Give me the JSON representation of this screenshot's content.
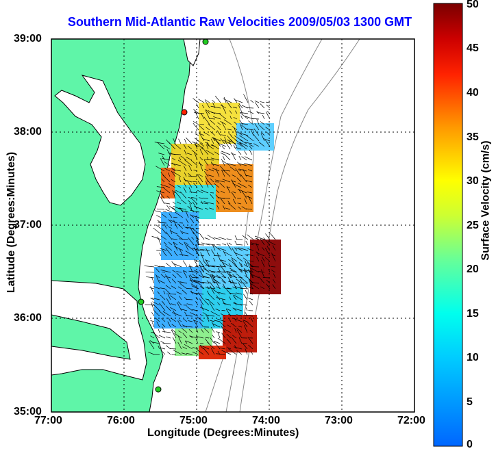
{
  "title": "Southern Mid-Atlantic Raw Velocities 2009/05/03 1300 GMT",
  "x_axis": {
    "label": "Longitude (Degrees:Minutes)",
    "ticks": [
      "77:00",
      "76:00",
      "75:00",
      "74:00",
      "73:00",
      "72:00"
    ]
  },
  "y_axis": {
    "label": "Latitude (Degrees:Minutes)",
    "ticks": [
      "39:00",
      "38:00",
      "37:00",
      "36:00",
      "35:00"
    ]
  },
  "colorbar": {
    "label": "Surface Velocity (cm/s)",
    "ticks": [
      "50",
      "45",
      "40",
      "35",
      "30",
      "25",
      "20",
      "15",
      "10",
      "5",
      "0"
    ],
    "min": 0,
    "max": 50
  },
  "colors": {
    "title": "#0000ff",
    "land": "#5ff5a8",
    "coastline": "#000000",
    "bathymetry": "#888888",
    "station_active": "#22cc22",
    "station_inactive": "#ff2200"
  },
  "map_extent": {
    "lon_min": -77,
    "lon_max": -72,
    "lat_min": 35,
    "lat_max": 39
  },
  "grid": true
}
